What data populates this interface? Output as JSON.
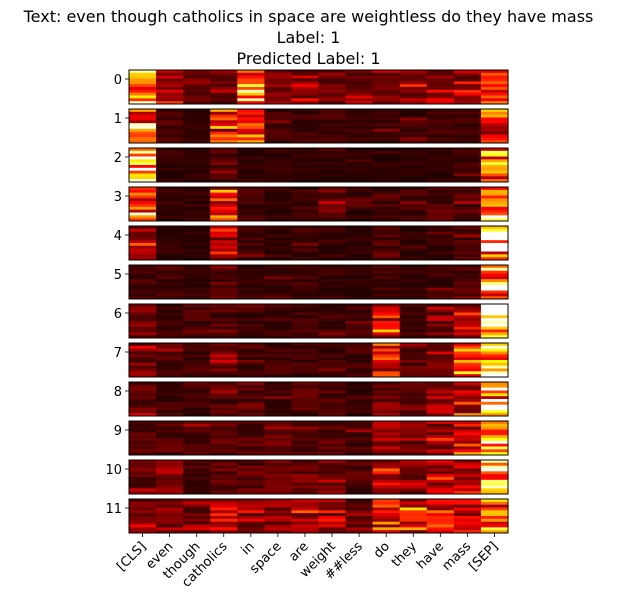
{
  "chart_data": {
    "type": "heatmap",
    "title_lines": [
      "Text: even though catholics in space are weightless do they have mass",
      "Label: 1",
      "Predicted Label: 1"
    ],
    "colormap": "hot",
    "x_tokens": [
      "[CLS]",
      "even",
      "though",
      "catholics",
      "in",
      "space",
      "are",
      "weight",
      "##less",
      "do",
      "they",
      "have",
      "mass",
      "[SEP]"
    ],
    "layers": [
      "0",
      "1",
      "2",
      "3",
      "4",
      "5",
      "6",
      "7",
      "8",
      "9",
      "10",
      "11"
    ],
    "heads_per_layer": 12,
    "column_emphasis": {
      "0": [
        0.85,
        0.35,
        0.25,
        0.3,
        0.75,
        0.3,
        0.3,
        0.3,
        0.25,
        0.3,
        0.35,
        0.3,
        0.4,
        0.65
      ],
      "1": [
        0.8,
        0.15,
        0.12,
        0.55,
        0.6,
        0.15,
        0.15,
        0.15,
        0.12,
        0.15,
        0.15,
        0.15,
        0.15,
        0.55
      ],
      "2": [
        0.92,
        0.1,
        0.1,
        0.2,
        0.12,
        0.1,
        0.1,
        0.1,
        0.1,
        0.1,
        0.1,
        0.1,
        0.15,
        0.8
      ],
      "3": [
        0.8,
        0.12,
        0.12,
        0.55,
        0.15,
        0.12,
        0.15,
        0.25,
        0.12,
        0.15,
        0.15,
        0.2,
        0.2,
        0.85
      ],
      "4": [
        0.4,
        0.1,
        0.1,
        0.4,
        0.15,
        0.12,
        0.15,
        0.15,
        0.1,
        0.2,
        0.1,
        0.12,
        0.2,
        0.95
      ],
      "5": [
        0.15,
        0.15,
        0.1,
        0.25,
        0.12,
        0.15,
        0.15,
        0.12,
        0.1,
        0.15,
        0.12,
        0.15,
        0.2,
        0.97
      ],
      "6": [
        0.3,
        0.15,
        0.2,
        0.2,
        0.15,
        0.15,
        0.15,
        0.15,
        0.15,
        0.55,
        0.15,
        0.25,
        0.4,
        0.95
      ],
      "7": [
        0.3,
        0.2,
        0.15,
        0.25,
        0.15,
        0.15,
        0.15,
        0.15,
        0.15,
        0.45,
        0.2,
        0.25,
        0.6,
        0.95
      ],
      "8": [
        0.25,
        0.15,
        0.15,
        0.2,
        0.2,
        0.15,
        0.2,
        0.2,
        0.15,
        0.3,
        0.25,
        0.4,
        0.45,
        0.95
      ],
      "9": [
        0.2,
        0.2,
        0.2,
        0.2,
        0.2,
        0.25,
        0.2,
        0.2,
        0.2,
        0.4,
        0.25,
        0.35,
        0.5,
        0.95
      ],
      "10": [
        0.25,
        0.35,
        0.2,
        0.25,
        0.2,
        0.25,
        0.3,
        0.25,
        0.2,
        0.5,
        0.35,
        0.45,
        0.45,
        0.9
      ],
      "11": [
        0.3,
        0.3,
        0.25,
        0.5,
        0.35,
        0.35,
        0.4,
        0.35,
        0.25,
        0.5,
        0.55,
        0.55,
        0.5,
        0.75
      ]
    }
  }
}
